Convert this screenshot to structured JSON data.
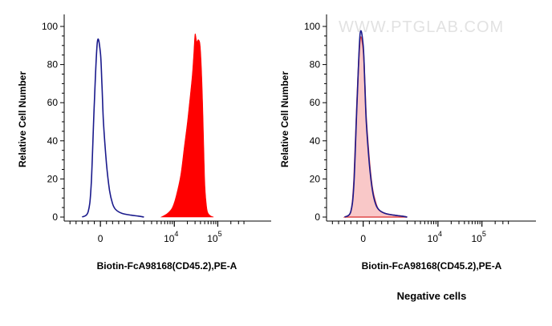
{
  "chart_data": [
    {
      "type": "area",
      "xlabel": "Biotin-FcA98168(CD45.2),PE-A",
      "ylabel": "Relative Cell Number",
      "ylim": [
        0,
        100
      ],
      "yticks": [
        "0",
        "20",
        "40",
        "60",
        "80",
        "100"
      ],
      "x_scale": "biexponential",
      "xticks": [
        {
          "value": 0,
          "base": "0",
          "exp": ""
        },
        {
          "value": 10000,
          "base": "10",
          "exp": "4"
        },
        {
          "value": 100000,
          "base": "10",
          "exp": "5"
        }
      ],
      "series": [
        {
          "style": "outline",
          "color": "#1a1a8c",
          "x": [
            -600,
            -400,
            -300,
            -200,
            -100,
            0,
            50,
            100,
            200,
            300,
            400,
            500,
            700,
            1000,
            1500,
            2000
          ],
          "values": [
            0,
            3,
            18,
            60,
            92,
            86,
            70,
            50,
            28,
            14,
            7,
            4,
            2,
            1,
            0.5,
            0
          ]
        },
        {
          "style": "filled",
          "color": "#ff0000",
          "x": [
            5000,
            7000,
            9000,
            11000,
            14000,
            17000,
            20000,
            23000,
            26000,
            28000,
            30000,
            33000,
            36000,
            40000,
            45000,
            50000,
            55000,
            60000,
            70000,
            80000
          ],
          "values": [
            0,
            2,
            5,
            11,
            22,
            37,
            50,
            63,
            75,
            86,
            96,
            92,
            93,
            88,
            60,
            20,
            6,
            2,
            0.5,
            0
          ]
        }
      ]
    },
    {
      "type": "area",
      "title": "Negative cells",
      "xlabel": "Biotin-FcA98168(CD45.2),PE-A",
      "ylabel": "Relative Cell Number",
      "ylim": [
        0,
        100
      ],
      "yticks": [
        "0",
        "20",
        "40",
        "60",
        "80",
        "100"
      ],
      "x_scale": "biexponential",
      "xticks": [
        {
          "value": 0,
          "base": "0",
          "exp": ""
        },
        {
          "value": 10000,
          "base": "10",
          "exp": "4"
        },
        {
          "value": 100000,
          "base": "10",
          "exp": "5"
        }
      ],
      "series": [
        {
          "style": "filled",
          "color": "#f9c8c8",
          "x": [
            -600,
            -400,
            -300,
            -200,
            -100,
            0,
            50,
            100,
            200,
            300,
            400,
            500,
            700,
            1000,
            1500,
            2000
          ],
          "values": [
            0,
            3,
            20,
            62,
            93,
            88,
            72,
            52,
            30,
            15,
            8,
            4,
            2,
            1,
            0.5,
            0
          ]
        },
        {
          "style": "outline",
          "color": "#1a1a8c",
          "x": [
            -600,
            -400,
            -300,
            -200,
            -100,
            0,
            50,
            100,
            200,
            300,
            400,
            500,
            700,
            1000,
            1500,
            2000
          ],
          "values": [
            0,
            3,
            18,
            60,
            96,
            90,
            71,
            50,
            28,
            14,
            7,
            4,
            2,
            1,
            0.5,
            0
          ]
        }
      ]
    }
  ],
  "watermark": "WWW.PTGLAB.COM",
  "colors": {
    "axis": "#000000",
    "outline": "#1a1a8c",
    "positive_fill": "#ff0000",
    "negative_fill": "#f9c8c8"
  }
}
